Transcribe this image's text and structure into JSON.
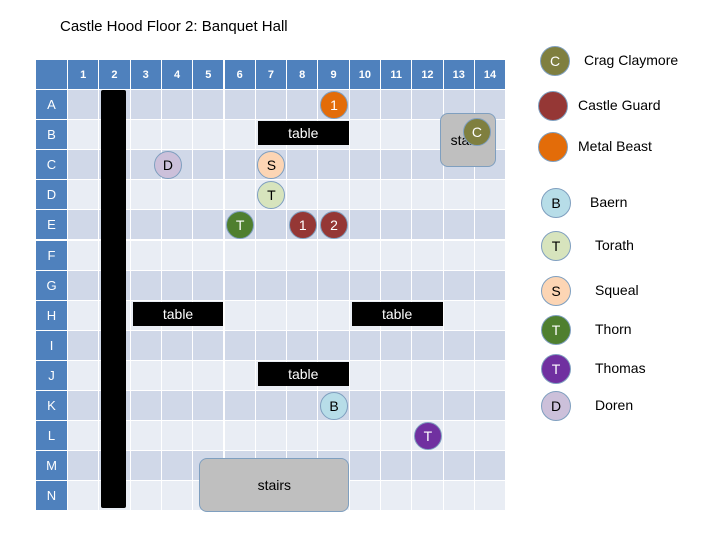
{
  "title": "Castle Hood Floor 2: Banquet Hall",
  "columns": [
    "1",
    "2",
    "3",
    "4",
    "5",
    "6",
    "7",
    "8",
    "9",
    "10",
    "11",
    "12",
    "13",
    "14"
  ],
  "rows": [
    "A",
    "B",
    "C",
    "D",
    "E",
    "F",
    "G",
    "H",
    "I",
    "J",
    "K",
    "L",
    "M",
    "N"
  ],
  "colors": {
    "header": "#4f81bd",
    "crag_claymore": "#7f7f3f",
    "castle_guard": "#953735",
    "metal_beast": "#e36c09",
    "baern": "#b7dde8",
    "torath": "#d7e4bd",
    "squeal": "#fcd5b4",
    "thorn": "#4f7f2f",
    "thomas": "#7030a0",
    "doren": "#ccc0da"
  },
  "tables": [
    {
      "label": "table",
      "row": "B",
      "col_start": 7,
      "col_end": 9
    },
    {
      "label": "table",
      "row": "H",
      "col_start": 3,
      "col_end": 5
    },
    {
      "label": "table",
      "row": "H",
      "col_start": 10,
      "col_end": 12
    },
    {
      "label": "table",
      "row": "J",
      "col_start": 7,
      "col_end": 9
    }
  ],
  "stairs": [
    {
      "label": "stairs",
      "rows": "B-C",
      "cols": "13-14"
    },
    {
      "label": "stairs",
      "rows": "M-N",
      "cols": "5-9"
    }
  ],
  "tokens": [
    {
      "letter": "1",
      "row": "A",
      "col": 9,
      "type": "metal_beast"
    },
    {
      "letter": "C",
      "row": "B",
      "col": 14,
      "type": "crag_claymore"
    },
    {
      "letter": "S",
      "row": "C",
      "col": 7,
      "type": "squeal"
    },
    {
      "letter": "D",
      "row": "C",
      "col": 4,
      "type": "doren"
    },
    {
      "letter": "T",
      "row": "D",
      "col": 7,
      "type": "torath"
    },
    {
      "letter": "T",
      "row": "E",
      "col": 6,
      "type": "thorn"
    },
    {
      "letter": "1",
      "row": "E",
      "col": 8,
      "type": "castle_guard"
    },
    {
      "letter": "2",
      "row": "E",
      "col": 9,
      "type": "castle_guard"
    },
    {
      "letter": "B",
      "row": "K",
      "col": 9,
      "type": "baern"
    },
    {
      "letter": "T",
      "row": "L",
      "col": 12,
      "type": "thomas"
    }
  ],
  "legend": [
    {
      "letter": "C",
      "name": "Crag Claymore",
      "type": "crag_claymore"
    },
    {
      "letter": "",
      "name": "Castle Guard",
      "type": "castle_guard"
    },
    {
      "letter": "",
      "name": "Metal Beast",
      "type": "metal_beast"
    },
    {
      "letter": "B",
      "name": "Baern",
      "type": "baern"
    },
    {
      "letter": "T",
      "name": "Torath",
      "type": "torath"
    },
    {
      "letter": "S",
      "name": "Squeal",
      "type": "squeal"
    },
    {
      "letter": "T",
      "name": "Thorn",
      "type": "thorn"
    },
    {
      "letter": "T",
      "name": "Thomas",
      "type": "thomas"
    },
    {
      "letter": "D",
      "name": "Doren",
      "type": "doren"
    }
  ]
}
